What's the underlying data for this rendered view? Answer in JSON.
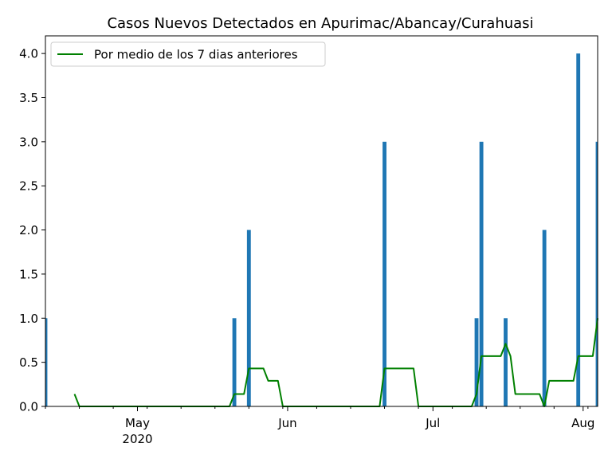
{
  "chart_data": {
    "type": "bar",
    "title": "Casos Nuevos Detectados en Apurimac/Abancay/Curahuasi",
    "xlabel": "",
    "ylabel": "",
    "x_range": [
      "2020-04-12",
      "2020-08-04"
    ],
    "ylim": [
      0,
      4.2
    ],
    "y_ticks": [
      "0.0",
      "0.5",
      "1.0",
      "1.5",
      "2.0",
      "2.5",
      "3.0",
      "3.5",
      "4.0"
    ],
    "x_ticks": [
      {
        "date": "2020-05-01",
        "label": "May",
        "sublabel": "2020"
      },
      {
        "date": "2020-06-01",
        "label": "Jun",
        "sublabel": ""
      },
      {
        "date": "2020-07-01",
        "label": "Jul",
        "sublabel": ""
      },
      {
        "date": "2020-08-01",
        "label": "Aug",
        "sublabel": ""
      }
    ],
    "bar_color": "#1f77b4",
    "bars": [
      {
        "date": "2020-04-12",
        "value": 1
      },
      {
        "date": "2020-05-21",
        "value": 1
      },
      {
        "date": "2020-05-24",
        "value": 2
      },
      {
        "date": "2020-06-21",
        "value": 3
      },
      {
        "date": "2020-07-10",
        "value": 1
      },
      {
        "date": "2020-07-11",
        "value": 3
      },
      {
        "date": "2020-07-16",
        "value": 1
      },
      {
        "date": "2020-07-24",
        "value": 2
      },
      {
        "date": "2020-07-31",
        "value": 4
      },
      {
        "date": "2020-08-04",
        "value": 3
      }
    ],
    "series": [
      {
        "name": "Por medio de los 7 dias anteriores",
        "color": "#008000",
        "points": [
          {
            "date": "2020-04-18",
            "value": 0.14
          },
          {
            "date": "2020-04-19",
            "value": 0
          },
          {
            "date": "2020-05-20",
            "value": 0
          },
          {
            "date": "2020-05-21",
            "value": 0.14
          },
          {
            "date": "2020-05-23",
            "value": 0.14
          },
          {
            "date": "2020-05-24",
            "value": 0.43
          },
          {
            "date": "2020-05-27",
            "value": 0.43
          },
          {
            "date": "2020-05-28",
            "value": 0.29
          },
          {
            "date": "2020-05-30",
            "value": 0.29
          },
          {
            "date": "2020-05-31",
            "value": 0
          },
          {
            "date": "2020-06-20",
            "value": 0
          },
          {
            "date": "2020-06-21",
            "value": 0.43
          },
          {
            "date": "2020-06-27",
            "value": 0.43
          },
          {
            "date": "2020-06-28",
            "value": 0
          },
          {
            "date": "2020-07-09",
            "value": 0
          },
          {
            "date": "2020-07-10",
            "value": 0.14
          },
          {
            "date": "2020-07-11",
            "value": 0.57
          },
          {
            "date": "2020-07-15",
            "value": 0.57
          },
          {
            "date": "2020-07-16",
            "value": 0.71
          },
          {
            "date": "2020-07-17",
            "value": 0.57
          },
          {
            "date": "2020-07-18",
            "value": 0.14
          },
          {
            "date": "2020-07-23",
            "value": 0.14
          },
          {
            "date": "2020-07-24",
            "value": 0
          },
          {
            "date": "2020-07-25",
            "value": 0.29
          },
          {
            "date": "2020-07-30",
            "value": 0.29
          },
          {
            "date": "2020-07-31",
            "value": 0.57
          },
          {
            "date": "2020-08-03",
            "value": 0.57
          },
          {
            "date": "2020-08-04",
            "value": 1.0
          }
        ]
      }
    ],
    "legend": {
      "position": "top-left"
    },
    "grid": false
  }
}
